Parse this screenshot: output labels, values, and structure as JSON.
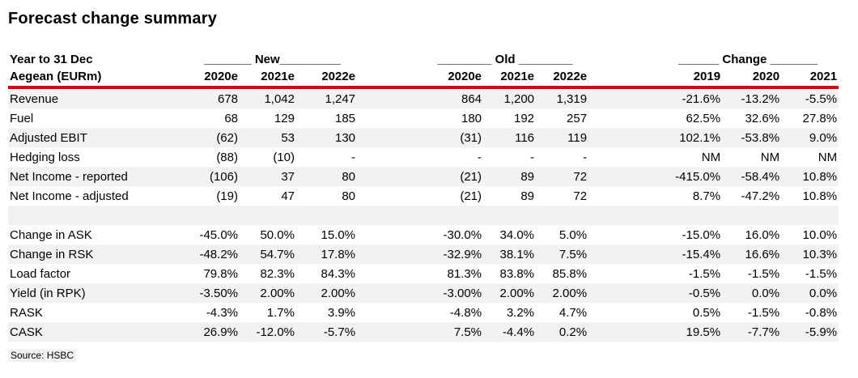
{
  "title": "Forecast change summary",
  "table": {
    "header": {
      "row1_label": "Year to 31 Dec",
      "row2_label": "Aegean (EURm)",
      "groups": {
        "new": "_______ New_________",
        "old": "________ Old ________",
        "change": "______ Change _______"
      },
      "columns": {
        "new": [
          "2020e",
          "2021e",
          "2022e"
        ],
        "old": [
          "2020e",
          "2021e",
          "2022e"
        ],
        "change": [
          "2019",
          "2020",
          "2021"
        ]
      }
    },
    "rows": [
      {
        "label": "Revenue",
        "new": [
          "678",
          "1,042",
          "1,247"
        ],
        "old": [
          "864",
          "1,200",
          "1,319"
        ],
        "change": [
          "-21.6%",
          "-13.2%",
          "-5.5%"
        ]
      },
      {
        "label": "Fuel",
        "new": [
          "68",
          "129",
          "185"
        ],
        "old": [
          "180",
          "192",
          "257"
        ],
        "change": [
          "62.5%",
          "32.6%",
          "27.8%"
        ]
      },
      {
        "label": "Adjusted EBIT",
        "new": [
          "(62)",
          "53",
          "130"
        ],
        "old": [
          "(31)",
          "116",
          "119"
        ],
        "change": [
          "102.1%",
          "-53.8%",
          "9.0%"
        ]
      },
      {
        "label": "Hedging loss",
        "new": [
          "(88)",
          "(10)",
          "-"
        ],
        "old": [
          "-",
          "-",
          "-"
        ],
        "change": [
          "NM",
          "NM",
          "NM"
        ]
      },
      {
        "label": "Net Income - reported",
        "new": [
          "(106)",
          "37",
          "80"
        ],
        "old": [
          "(21)",
          "89",
          "72"
        ],
        "change": [
          "-415.0%",
          "-58.4%",
          "10.8%"
        ]
      },
      {
        "label": "Net Income - adjusted",
        "new": [
          "(19)",
          "47",
          "80"
        ],
        "old": [
          "(21)",
          "89",
          "72"
        ],
        "change": [
          "8.7%",
          "-47.2%",
          "10.8%"
        ]
      },
      {
        "label": "",
        "new": [
          "",
          "",
          ""
        ],
        "old": [
          "",
          "",
          ""
        ],
        "change": [
          "",
          "",
          ""
        ]
      },
      {
        "label": "Change in ASK",
        "new": [
          "-45.0%",
          "50.0%",
          "15.0%"
        ],
        "old": [
          "-30.0%",
          "34.0%",
          "5.0%"
        ],
        "change": [
          "-15.0%",
          "16.0%",
          "10.0%"
        ]
      },
      {
        "label": "Change in RSK",
        "new": [
          "-48.2%",
          "54.7%",
          "17.8%"
        ],
        "old": [
          "-32.9%",
          "38.1%",
          "7.5%"
        ],
        "change": [
          "-15.4%",
          "16.6%",
          "10.3%"
        ]
      },
      {
        "label": "Load factor",
        "new": [
          "79.8%",
          "82.3%",
          "84.3%"
        ],
        "old": [
          "81.3%",
          "83.8%",
          "85.8%"
        ],
        "change": [
          "-1.5%",
          "-1.5%",
          "-1.5%"
        ]
      },
      {
        "label": "Yield (in RPK)",
        "new": [
          "-3.50%",
          "2.00%",
          "2.00%"
        ],
        "old": [
          "-3.00%",
          "2.00%",
          "2.00%"
        ],
        "change": [
          "-0.5%",
          "0.0%",
          "0.0%"
        ]
      },
      {
        "label": "RASK",
        "new": [
          "-4.3%",
          "1.7%",
          "3.9%"
        ],
        "old": [
          "-4.8%",
          "3.2%",
          "4.7%"
        ],
        "change": [
          "0.5%",
          "-1.5%",
          "-0.8%"
        ]
      },
      {
        "label": "CASK",
        "new": [
          "26.9%",
          "-12.0%",
          "-5.7%"
        ],
        "old": [
          "7.5%",
          "-4.4%",
          "0.2%"
        ],
        "change": [
          "19.5%",
          "-7.7%",
          "-5.9%"
        ]
      }
    ]
  },
  "source": "Source: HSBC",
  "colors": {
    "accent_red": "#db0011",
    "stripe_gray": "#f2f2f2"
  }
}
